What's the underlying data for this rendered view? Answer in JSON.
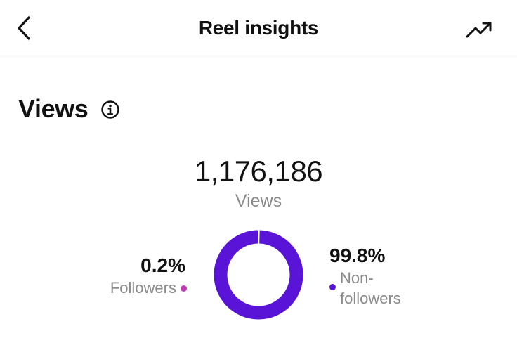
{
  "header": {
    "title": "Reel insights",
    "back_icon": "chevron-left-icon",
    "trend_icon": "trending-up-icon"
  },
  "views": {
    "section_title": "Views",
    "info_icon": "info-icon",
    "total": "1,176,186",
    "total_label": "Views"
  },
  "chart_data": {
    "type": "pie",
    "style": "donut",
    "categories": [
      "Followers",
      "Non-followers"
    ],
    "values": [
      0.2,
      99.8
    ],
    "value_labels": [
      "0.2%",
      "99.8%"
    ],
    "colors": [
      "#c13bb8",
      "#5a14d8"
    ]
  },
  "colors": {
    "accent": "#5a14d8",
    "followers": "#c13bb8",
    "muted_text": "#8a8a8a"
  }
}
